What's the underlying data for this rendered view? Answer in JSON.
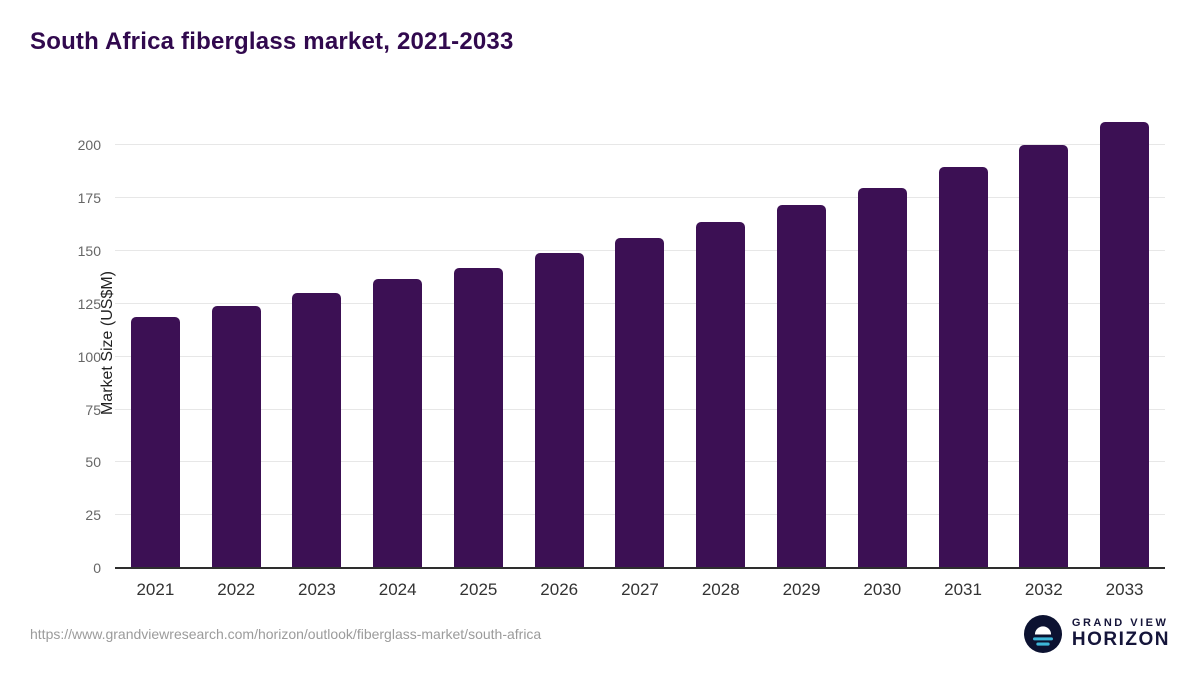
{
  "header": {
    "title": "South Africa fiberglass market, 2021-2033"
  },
  "chart_data": {
    "type": "bar",
    "title": "South Africa fiberglass market, 2021-2033",
    "categories": [
      "2021",
      "2022",
      "2023",
      "2024",
      "2025",
      "2026",
      "2027",
      "2028",
      "2029",
      "2030",
      "2031",
      "2032",
      "2033"
    ],
    "values": [
      119,
      124,
      130,
      137,
      142,
      149,
      156,
      164,
      172,
      180,
      190,
      200,
      211
    ],
    "xlabel": "",
    "ylabel": "Market Size (US$M)",
    "ylim": [
      0,
      213
    ],
    "yticks": [
      0,
      25,
      50,
      75,
      100,
      125,
      150,
      175,
      200
    ],
    "grid": true,
    "legend": "none",
    "bar_color": "#3c1054"
  },
  "footer": {
    "source_url": "https://www.grandviewresearch.com/horizon/outlook/fiberglass-market/south-africa",
    "logo": {
      "line1": "GRAND VIEW",
      "line2": "HORIZON"
    }
  }
}
